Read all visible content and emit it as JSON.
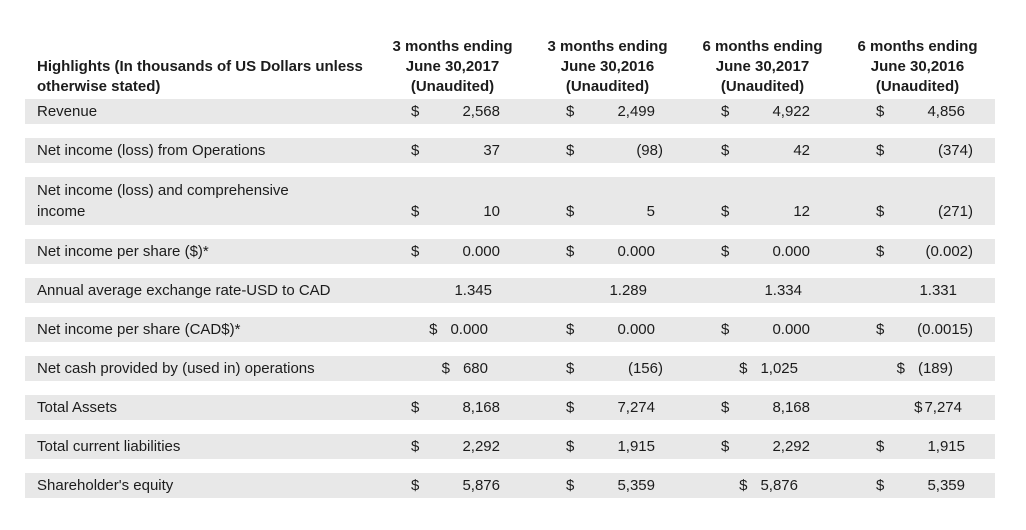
{
  "table": {
    "header": {
      "label_line1": "Highlights (In thousands of US Dollars unless",
      "label_line2": "otherwise stated)",
      "columns": [
        {
          "line1": "3 months ending",
          "line2": "June 30,2017",
          "line3": "(Unaudited)"
        },
        {
          "line1": "3 months ending",
          "line2": "June 30,2016",
          "line3": "(Unaudited)"
        },
        {
          "line1": "6 months ending",
          "line2": "June 30,2017",
          "line3": "(Unaudited)"
        },
        {
          "line1": "6 months ending",
          "line2": "June 30,2016",
          "line3": "(Unaudited)"
        }
      ]
    },
    "rows": [
      {
        "label": "Revenue",
        "cells": [
          {
            "cur": "$",
            "val": "2,568"
          },
          {
            "cur": "$",
            "val": "2,499"
          },
          {
            "cur": "$",
            "val": "4,922"
          },
          {
            "cur": "$",
            "val": "4,856"
          }
        ]
      },
      {
        "label": "Net income (loss) from Operations",
        "cells": [
          {
            "cur": "$",
            "val": "37"
          },
          {
            "cur": "$",
            "val": "(98)"
          },
          {
            "cur": "$",
            "val": "42"
          },
          {
            "cur": "$",
            "val": "(374)"
          }
        ]
      },
      {
        "label": "Net income (loss) and comprehensive",
        "label_line2": "income",
        "cells": [
          {
            "cur": "$",
            "val": "10"
          },
          {
            "cur": "$",
            "val": "5"
          },
          {
            "cur": "$",
            "val": "12"
          },
          {
            "cur": "$",
            "val": "(271)"
          }
        ]
      },
      {
        "label": "Net income per share ($)*",
        "cells": [
          {
            "cur": "$",
            "val": "0.000"
          },
          {
            "cur": "$",
            "val": "0.000"
          },
          {
            "cur": "$",
            "val": "0.000"
          },
          {
            "cur": "$",
            "val": "(0.002)"
          }
        ]
      },
      {
        "label": "Annual average exchange rate-USD to CAD",
        "cells": [
          {
            "val": "1.345"
          },
          {
            "val": "1.289"
          },
          {
            "val": "1.334"
          },
          {
            "val": "1.331"
          }
        ]
      },
      {
        "label": "Net income per share (CAD$)*",
        "cells": [
          {
            "cur": "$",
            "val": "0.000",
            "layout": "narrow"
          },
          {
            "cur": "$",
            "val": "0.000"
          },
          {
            "cur": "$",
            "val": "0.000"
          },
          {
            "cur": "$",
            "val": "(0.0015)"
          }
        ]
      },
      {
        "label": "Net cash provided by (used in) operations",
        "cells": [
          {
            "cur": "$",
            "val": "680",
            "layout": "narrow"
          },
          {
            "cur": "$",
            "val": "(156)"
          },
          {
            "cur": "$",
            "val": "1,025",
            "layout": "narrow"
          },
          {
            "cur": "$",
            "val": "(189)",
            "layout": "narrow"
          }
        ]
      },
      {
        "label": "Total Assets",
        "cells": [
          {
            "cur": "$",
            "val": "8,168"
          },
          {
            "cur": "$",
            "val": "7,274"
          },
          {
            "cur": "$",
            "val": "8,168"
          },
          {
            "cur": "$",
            "val": "7,274",
            "layout": "attached"
          }
        ]
      },
      {
        "label": "Total current liabilities",
        "cells": [
          {
            "cur": "$",
            "val": "2,292"
          },
          {
            "cur": "$",
            "val": "1,915"
          },
          {
            "cur": "$",
            "val": "2,292"
          },
          {
            "cur": "$",
            "val": "1,915"
          }
        ]
      },
      {
        "label": "Shareholder's equity",
        "cells": [
          {
            "cur": "$",
            "val": "5,876"
          },
          {
            "cur": "$",
            "val": "5,359"
          },
          {
            "cur": "$",
            "val": "5,876",
            "layout": "narrow"
          },
          {
            "cur": "$",
            "val": "5,359"
          }
        ]
      }
    ],
    "colors": {
      "band_gray": "#E8E8E8",
      "text": "#1C1C1C",
      "background": "#FFFFFF"
    }
  }
}
